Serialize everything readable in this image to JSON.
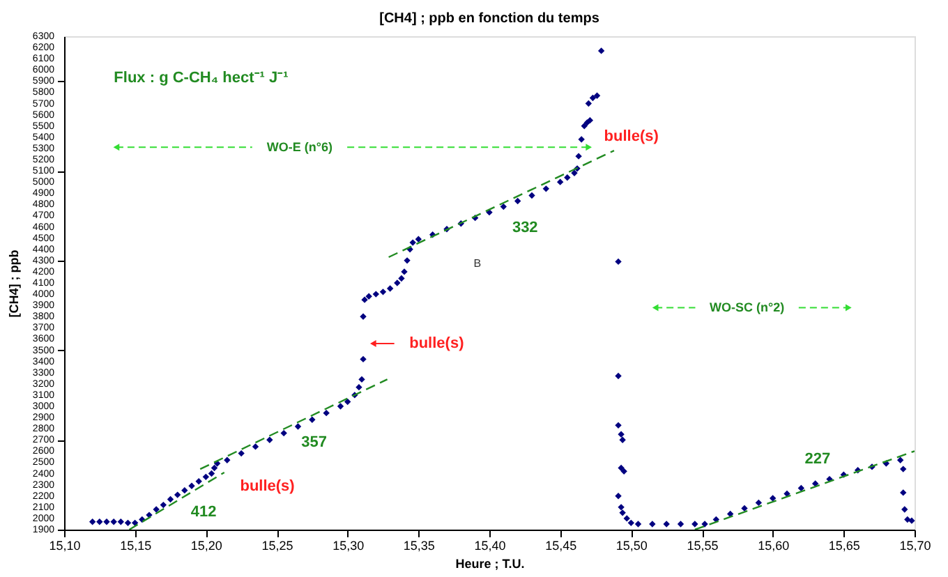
{
  "chart_data": {
    "type": "scatter",
    "title": "[CH4] ; ppb en fonction du temps",
    "xlabel": "Heure ; T.U.",
    "ylabel": "[CH4] ; ppb",
    "xlim": [
      15.1,
      15.7
    ],
    "xticks": [
      {
        "value": 15.1,
        "label": "15,10"
      },
      {
        "value": 15.15,
        "label": "15,15"
      },
      {
        "value": 15.2,
        "label": "15,20"
      },
      {
        "value": 15.25,
        "label": "15,25"
      },
      {
        "value": 15.3,
        "label": "15,30"
      },
      {
        "value": 15.35,
        "label": "15,35"
      },
      {
        "value": 15.4,
        "label": "15,40"
      },
      {
        "value": 15.45,
        "label": "15,45"
      },
      {
        "value": 15.5,
        "label": "15,50"
      },
      {
        "value": 15.55,
        "label": "15,55"
      },
      {
        "value": 15.6,
        "label": "15,60"
      },
      {
        "value": 15.65,
        "label": "15,65"
      },
      {
        "value": 15.7,
        "label": "15,70"
      }
    ],
    "ylim": [
      1900,
      6300
    ],
    "yticks": [
      1900,
      2000,
      2100,
      2200,
      2300,
      2400,
      2500,
      2600,
      2700,
      2800,
      2900,
      3000,
      3100,
      3200,
      3300,
      3400,
      3500,
      3600,
      3700,
      3800,
      3900,
      4000,
      4100,
      4200,
      4300,
      4400,
      4500,
      4600,
      4700,
      4800,
      4900,
      5000,
      5100,
      5200,
      5300,
      5400,
      5500,
      5600,
      5700,
      5800,
      5900,
      6000,
      6100,
      6200,
      6300
    ],
    "grid": false,
    "series": [
      {
        "color": "#000080",
        "marker": "diamond",
        "x": [
          15.12,
          15.125,
          15.13,
          15.135,
          15.14,
          15.145,
          15.15,
          15.155,
          15.16,
          15.165,
          15.17,
          15.175,
          15.18,
          15.185,
          15.19,
          15.195,
          15.2,
          15.204,
          15.206,
          15.208,
          15.215,
          15.225,
          15.235,
          15.245,
          15.255,
          15.265,
          15.275,
          15.285,
          15.295,
          15.3,
          15.305,
          15.308,
          15.31,
          15.311,
          15.311,
          15.312,
          15.315,
          15.32,
          15.325,
          15.33,
          15.335,
          15.338,
          15.34,
          15.342,
          15.344,
          15.346,
          15.35,
          15.36,
          15.37,
          15.38,
          15.39,
          15.4,
          15.41,
          15.42,
          15.43,
          15.44,
          15.45,
          15.455,
          15.46,
          15.462,
          15.463,
          15.465,
          15.467,
          15.469,
          15.471,
          15.47,
          15.473,
          15.476,
          15.479,
          15.491,
          15.491,
          15.491,
          15.493,
          15.494,
          15.493,
          15.495,
          15.491,
          15.493,
          15.494,
          15.497,
          15.5,
          15.505,
          15.515,
          15.525,
          15.535,
          15.545,
          15.552,
          15.56,
          15.57,
          15.58,
          15.59,
          15.6,
          15.61,
          15.62,
          15.63,
          15.64,
          15.65,
          15.66,
          15.67,
          15.68,
          15.69,
          15.692,
          15.692,
          15.693,
          15.695,
          15.698
        ],
        "values": [
          1970,
          1970,
          1970,
          1970,
          1970,
          1960,
          1960,
          1990,
          2030,
          2080,
          2120,
          2170,
          2210,
          2250,
          2290,
          2330,
          2370,
          2400,
          2450,
          2490,
          2520,
          2580,
          2640,
          2700,
          2760,
          2820,
          2880,
          2940,
          3000,
          3040,
          3100,
          3170,
          3240,
          3420,
          3800,
          3950,
          3980,
          4000,
          4020,
          4050,
          4100,
          4140,
          4200,
          4300,
          4400,
          4460,
          4490,
          4530,
          4580,
          4630,
          4680,
          4730,
          4780,
          4830,
          4880,
          4940,
          5000,
          5040,
          5080,
          5120,
          5230,
          5380,
          5500,
          5530,
          5550,
          5700,
          5750,
          5770,
          6170,
          4290,
          3270,
          2830,
          2750,
          2700,
          2450,
          2420,
          2200,
          2100,
          2050,
          2000,
          1960,
          1950,
          1950,
          1950,
          1950,
          1950,
          1950,
          1990,
          2040,
          2090,
          2140,
          2180,
          2220,
          2270,
          2310,
          2350,
          2390,
          2430,
          2460,
          2490,
          2520,
          2440,
          2230,
          2080,
          1990,
          1980
        ]
      },
      {
        "type": "line",
        "color": "#228b22",
        "line_style": "dashed",
        "x": [
          15.146,
          15.213
        ],
        "values": [
          1900,
          2410
        ]
      },
      {
        "type": "line",
        "color": "#228b22",
        "line_style": "dashed",
        "x": [
          15.196,
          15.328
        ],
        "values": [
          2440,
          3240
        ]
      },
      {
        "type": "line",
        "color": "#228b22",
        "line_style": "dashed",
        "x": [
          15.329,
          15.488
        ],
        "values": [
          4330,
          5280
        ]
      },
      {
        "type": "line",
        "color": "#228b22",
        "line_style": "dashed",
        "x": [
          15.545,
          15.7
        ],
        "values": [
          1900,
          2600
        ]
      }
    ],
    "annotations": [
      "Flux : g C-CH₄ hect⁻¹ J⁻¹",
      "WO-E (n°6)",
      "bulle(s)",
      "332",
      "B",
      "WO-SC (n°2)",
      "227",
      "bulle(s)",
      "357",
      "bulle(s)",
      "412"
    ]
  }
}
